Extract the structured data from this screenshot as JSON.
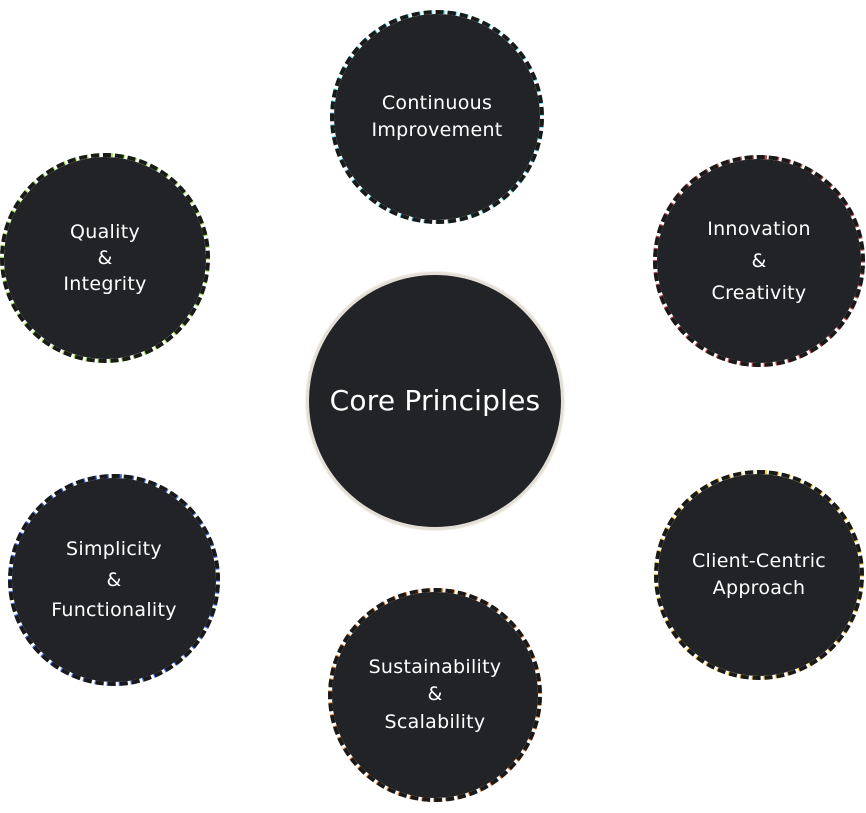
{
  "diagram": {
    "center": {
      "label": "Core Principles"
    },
    "nodes": [
      {
        "id": "continuous-improvement",
        "lines": [
          "Continuous",
          "Improvement"
        ],
        "accent": "#6fe6ee"
      },
      {
        "id": "quality-integrity",
        "lines": [
          "Quality",
          "&",
          "Integrity"
        ],
        "accent": "#a6e35a"
      },
      {
        "id": "innovation-creativity",
        "lines": [
          "Innovation",
          "&",
          "Creativity"
        ],
        "accent": "#b9484d"
      },
      {
        "id": "simplicity-functionality",
        "lines": [
          "Simplicity",
          "&",
          "Functionality"
        ],
        "accent": "#4568e8"
      },
      {
        "id": "client-centric",
        "lines": [
          "Client-Centric",
          "Approach"
        ],
        "accent": "#f3cf45"
      },
      {
        "id": "sustainability-scalability",
        "lines": [
          "Sustainability",
          "&",
          "Scalability"
        ],
        "accent": "#f08a45"
      }
    ]
  }
}
